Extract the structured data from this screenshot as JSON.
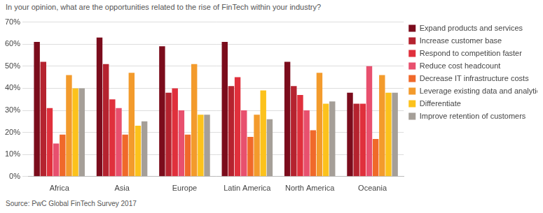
{
  "chart_data": {
    "type": "bar",
    "title": "In your opinion, what are the opportunities related to the rise of FinTech within your industry?",
    "source": "Source: PwC Global FinTech Survey 2017",
    "categories": [
      "Africa",
      "Asia",
      "Europe",
      "Latin America",
      "North America",
      "Oceania"
    ],
    "series": [
      {
        "name": "Expand products and services",
        "color": "#7b0c1c",
        "values": [
          61,
          63,
          59,
          61,
          52,
          38
        ]
      },
      {
        "name": "Increase customer base",
        "color": "#b5232f",
        "values": [
          52,
          51,
          38,
          41,
          41,
          33
        ]
      },
      {
        "name": "Respond to competition faster",
        "color": "#e0303c",
        "values": [
          31,
          35,
          40,
          45,
          37,
          33
        ]
      },
      {
        "name": "Reduce cost headcount",
        "color": "#e8506e",
        "values": [
          15,
          31,
          30,
          30,
          30,
          50
        ]
      },
      {
        "name": "Decrease IT infrastructure costs",
        "color": "#f0692a",
        "values": [
          19,
          19,
          19,
          18,
          21,
          17
        ]
      },
      {
        "name": "Leverage existing data and analytics",
        "color": "#f39b2c",
        "values": [
          46,
          47,
          51,
          28,
          47,
          46
        ]
      },
      {
        "name": "Differentiate",
        "color": "#fcc21c",
        "values": [
          40,
          23,
          28,
          39,
          33,
          38
        ]
      },
      {
        "name": "Improve retention of customers",
        "color": "#a59f98",
        "values": [
          40,
          25,
          28,
          26,
          34,
          38
        ]
      }
    ],
    "ylim": [
      0,
      70
    ],
    "yticks": [
      {
        "value": 0,
        "label": "0%"
      },
      {
        "value": 10,
        "label": "10%"
      },
      {
        "value": 20,
        "label": "20%"
      },
      {
        "value": 30,
        "label": "30%"
      },
      {
        "value": 40,
        "label": "40%"
      },
      {
        "value": 50,
        "label": "50%"
      },
      {
        "value": 60,
        "label": "60%"
      },
      {
        "value": 70,
        "label": "70%"
      }
    ],
    "grid": true,
    "legend": "right"
  }
}
